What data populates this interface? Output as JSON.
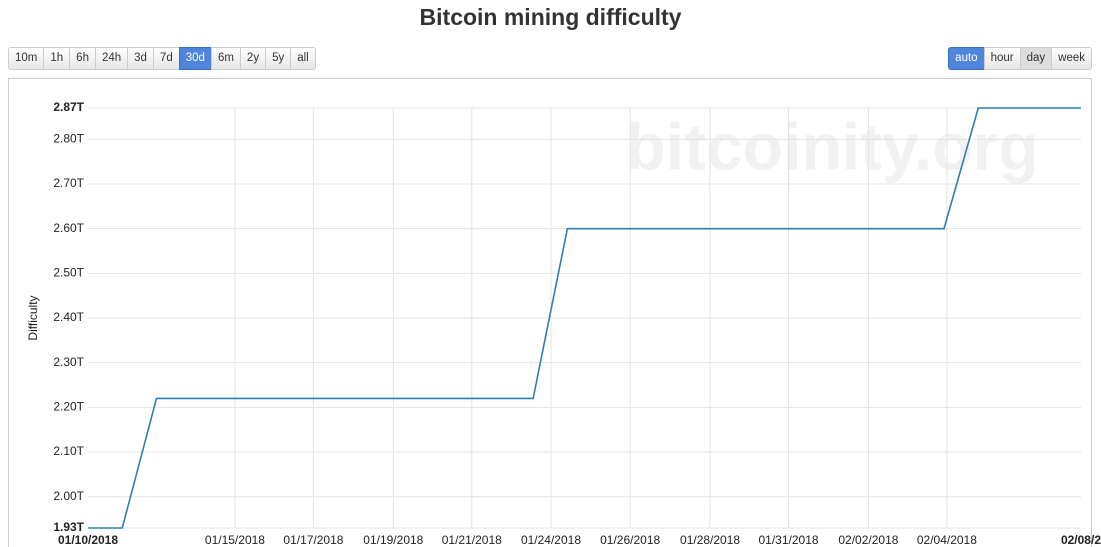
{
  "chart_data": {
    "type": "line",
    "title": "Bitcoin mining difficulty",
    "y_label": "Difficulty",
    "watermark": "bitcoinity.org",
    "x": [
      "2018-01-10",
      "2018-01-11",
      "2018-01-12",
      "2018-01-13",
      "2018-01-14",
      "2018-01-15",
      "2018-01-16",
      "2018-01-17",
      "2018-01-18",
      "2018-01-19",
      "2018-01-20",
      "2018-01-21",
      "2018-01-22",
      "2018-01-23",
      "2018-01-24",
      "2018-01-25",
      "2018-01-26",
      "2018-01-27",
      "2018-01-28",
      "2018-01-29",
      "2018-01-30",
      "2018-01-31",
      "2018-02-01",
      "2018-02-02",
      "2018-02-03",
      "2018-02-04",
      "2018-02-05",
      "2018-02-06",
      "2018-02-07",
      "2018-02-08"
    ],
    "series": [
      {
        "name": "Difficulty",
        "color": "#2f7eb3",
        "values": [
          1.93,
          1.93,
          2.22,
          2.22,
          2.22,
          2.22,
          2.22,
          2.22,
          2.22,
          2.22,
          2.22,
          2.22,
          2.22,
          2.22,
          2.6,
          2.6,
          2.6,
          2.6,
          2.6,
          2.6,
          2.6,
          2.6,
          2.6,
          2.6,
          2.6,
          2.6,
          2.87,
          2.87,
          2.87,
          2.87
        ]
      }
    ],
    "xlim": [
      "2018-01-10",
      "2018-02-08"
    ],
    "xticks": [
      {
        "value": "2018-01-10",
        "label": "01/10/2018"
      },
      {
        "value": "2018-01-14T07:00",
        "label": "01/15/2018"
      },
      {
        "value": "2018-01-16T14:00",
        "label": "01/17/2018"
      },
      {
        "value": "2018-01-18T22:00",
        "label": "01/19/2018"
      },
      {
        "value": "2018-01-21T05:00",
        "label": "01/21/2018"
      },
      {
        "value": "2018-01-23T12:30",
        "label": "01/24/2018"
      },
      {
        "value": "2018-01-25T20:00",
        "label": "01/26/2018"
      },
      {
        "value": "2018-01-28T04:00",
        "label": "01/28/2018"
      },
      {
        "value": "2018-01-30T11:00",
        "label": "01/31/2018"
      },
      {
        "value": "2018-02-01T19:00",
        "label": "02/02/2018"
      },
      {
        "value": "2018-02-04T02:00",
        "label": "02/04/2018"
      },
      {
        "value": "2018-02-08",
        "label": "02/08/2"
      }
    ],
    "ylim": [
      1.93,
      2.87
    ],
    "yticks": [
      {
        "value": 1.93,
        "label": "1.93T"
      },
      {
        "value": 2.0,
        "label": "2.00T"
      },
      {
        "value": 2.1,
        "label": "2.10T"
      },
      {
        "value": 2.2,
        "label": "2.20T"
      },
      {
        "value": 2.3,
        "label": "2.30T"
      },
      {
        "value": 2.4,
        "label": "2.40T"
      },
      {
        "value": 2.5,
        "label": "2.50T"
      },
      {
        "value": 2.6,
        "label": "2.60T"
      },
      {
        "value": 2.7,
        "label": "2.70T"
      },
      {
        "value": 2.8,
        "label": "2.80T"
      },
      {
        "value": 2.87,
        "label": "2.87T"
      }
    ],
    "grid": true
  },
  "controls": {
    "ranges": [
      "10m",
      "1h",
      "6h",
      "24h",
      "3d",
      "7d",
      "30d",
      "6m",
      "2y",
      "5y",
      "all"
    ],
    "active_range": "30d",
    "modes": [
      "auto",
      "hour",
      "day",
      "week"
    ],
    "active_mode": "auto",
    "pressed_mode": "day"
  }
}
